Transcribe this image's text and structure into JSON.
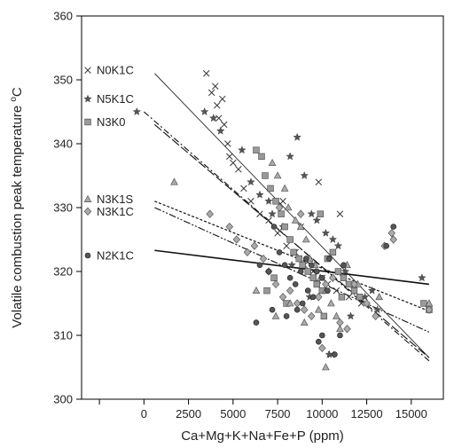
{
  "chart_data": {
    "type": "scatter",
    "title": "",
    "xlabel": "Ca+Mg+K+Na+Fe+P (ppm)",
    "ylabel_main": "Volatile combustion peak temperature ",
    "ylabel_unit": "C",
    "ylabel_sup": "o",
    "xlim": [
      -3500,
      16800
    ],
    "ylim": [
      300,
      360
    ],
    "xticks": [
      0,
      2500,
      5000,
      7500,
      10000,
      12500,
      15000
    ],
    "xtick_labels": [
      "0",
      "2500",
      "5000",
      "7500",
      "10000",
      "12500",
      "15000"
    ],
    "yticks": [
      300,
      310,
      320,
      330,
      340,
      350,
      360
    ],
    "ytick_labels": [
      "300",
      "310",
      "320",
      "330",
      "340",
      "350",
      "360"
    ],
    "legend_placement": "left, inside plot",
    "series": [
      {
        "name": "N0K1C",
        "marker": "x",
        "color": "#333333",
        "line_style": "solid-thin",
        "fit": [
          [
            600,
            351
          ],
          [
            16000,
            306.5
          ]
        ],
        "points": [
          [
            3500,
            351
          ],
          [
            3800,
            348
          ],
          [
            4000,
            349
          ],
          [
            4100,
            346
          ],
          [
            4200,
            344
          ],
          [
            4400,
            347
          ],
          [
            4500,
            343
          ],
          [
            4700,
            340
          ],
          [
            4800,
            338
          ],
          [
            5000,
            337
          ],
          [
            5300,
            336
          ],
          [
            5600,
            333
          ],
          [
            6000,
            331
          ],
          [
            6500,
            329
          ],
          [
            7000,
            328
          ],
          [
            7500,
            326
          ],
          [
            8000,
            324
          ],
          [
            8500,
            323
          ],
          [
            9000,
            321
          ],
          [
            9500,
            320
          ],
          [
            10000,
            319
          ],
          [
            10300,
            318
          ],
          [
            10800,
            317
          ],
          [
            11500,
            316
          ],
          [
            12200,
            315
          ],
          [
            9800,
            334
          ],
          [
            11000,
            329
          ],
          [
            10500,
            307
          ],
          [
            7800,
            331
          ],
          [
            8800,
            327
          ]
        ]
      },
      {
        "name": "N5K1C",
        "marker": "star",
        "color": "#555555",
        "line_style": "dash-dot",
        "fit": [
          [
            0,
            345
          ],
          [
            16000,
            306
          ]
        ],
        "points": [
          [
            -400,
            345
          ],
          [
            3400,
            345
          ],
          [
            3900,
            344
          ],
          [
            4300,
            342
          ],
          [
            5500,
            339
          ],
          [
            6000,
            334
          ],
          [
            6500,
            332
          ],
          [
            7000,
            331
          ],
          [
            7200,
            329
          ],
          [
            7800,
            327
          ],
          [
            8600,
            341
          ],
          [
            8200,
            338
          ],
          [
            9000,
            335
          ],
          [
            9400,
            329
          ],
          [
            9700,
            328
          ],
          [
            10200,
            326
          ],
          [
            10600,
            325
          ],
          [
            10900,
            324
          ],
          [
            11300,
            320
          ],
          [
            11800,
            318
          ],
          [
            12400,
            316
          ],
          [
            13100,
            314
          ],
          [
            15600,
            319
          ],
          [
            8300,
            321
          ],
          [
            9300,
            316
          ],
          [
            10400,
            307
          ],
          [
            11600,
            313
          ],
          [
            12800,
            317
          ]
        ]
      },
      {
        "name": "N3K0",
        "marker": "square",
        "color": "#999999",
        "line_style": "long-dash",
        "fit": [
          [
            600,
            343
          ],
          [
            16000,
            306.5
          ]
        ],
        "points": [
          [
            6300,
            339
          ],
          [
            6600,
            338
          ],
          [
            6800,
            335
          ],
          [
            7100,
            333
          ],
          [
            7400,
            331
          ],
          [
            7700,
            329
          ],
          [
            7900,
            327
          ],
          [
            8200,
            325
          ],
          [
            8400,
            323
          ],
          [
            8700,
            322
          ],
          [
            8900,
            321
          ],
          [
            9200,
            320
          ],
          [
            9500,
            319
          ],
          [
            9700,
            318
          ],
          [
            10000,
            317
          ],
          [
            10300,
            322
          ],
          [
            10600,
            323
          ],
          [
            10900,
            320
          ],
          [
            11200,
            319
          ],
          [
            11500,
            318
          ],
          [
            11800,
            317
          ],
          [
            12100,
            316
          ],
          [
            6900,
            317
          ],
          [
            7300,
            319
          ],
          [
            8000,
            315
          ],
          [
            9900,
            329
          ],
          [
            10100,
            313
          ],
          [
            11100,
            316
          ],
          [
            15700,
            315
          ],
          [
            16000,
            314
          ]
        ]
      },
      {
        "name": "N3K1S",
        "marker": "triangle",
        "color": "#aaaaaa",
        "line_style": "dotted",
        "fit": [
          [
            600,
            331
          ],
          [
            16000,
            313.8
          ]
        ],
        "points": [
          [
            1700,
            334
          ],
          [
            7200,
            337
          ],
          [
            7500,
            335
          ],
          [
            7900,
            333
          ],
          [
            8100,
            330
          ],
          [
            8500,
            328
          ],
          [
            8800,
            327
          ],
          [
            9100,
            325
          ],
          [
            9300,
            322
          ],
          [
            9600,
            321
          ],
          [
            9900,
            319
          ],
          [
            10200,
            317
          ],
          [
            10500,
            315
          ],
          [
            10800,
            313
          ],
          [
            11000,
            311
          ],
          [
            11400,
            321
          ],
          [
            12000,
            318
          ],
          [
            13200,
            316
          ],
          [
            10200,
            305
          ],
          [
            7400,
            313
          ],
          [
            8200,
            315
          ],
          [
            6300,
            317
          ],
          [
            9000,
            312
          ],
          [
            9800,
            314
          ],
          [
            16000,
            315
          ]
        ]
      },
      {
        "name": "N3K1C",
        "marker": "diamond",
        "color": "#aaaaaa",
        "line_style": "dash-dot-dot",
        "fit": [
          [
            600,
            330
          ],
          [
            16000,
            310.5
          ]
        ],
        "points": [
          [
            3700,
            329
          ],
          [
            4800,
            327
          ],
          [
            5200,
            325
          ],
          [
            5800,
            323
          ],
          [
            6200,
            324
          ],
          [
            6700,
            322
          ],
          [
            7000,
            320
          ],
          [
            7400,
            318
          ],
          [
            7800,
            316
          ],
          [
            8200,
            317
          ],
          [
            8600,
            315
          ],
          [
            9000,
            314
          ],
          [
            9400,
            313
          ],
          [
            9800,
            316
          ],
          [
            10200,
            318
          ],
          [
            10600,
            319
          ],
          [
            11000,
            312
          ],
          [
            11400,
            311
          ],
          [
            11800,
            318
          ],
          [
            12500,
            315
          ],
          [
            13000,
            313
          ],
          [
            13500,
            324
          ],
          [
            13900,
            326
          ],
          [
            14000,
            325
          ],
          [
            16000,
            314
          ],
          [
            7600,
            330
          ],
          [
            8800,
            329
          ],
          [
            10000,
            308
          ]
        ]
      },
      {
        "name": "N2K1C",
        "marker": "circle",
        "color": "#555555",
        "line_style": "solid-thick",
        "fit": [
          [
            600,
            323.3
          ],
          [
            16000,
            318
          ]
        ],
        "points": [
          [
            6300,
            312
          ],
          [
            6500,
            321
          ],
          [
            7000,
            320
          ],
          [
            7300,
            327
          ],
          [
            7600,
            323
          ],
          [
            7900,
            321
          ],
          [
            8200,
            319
          ],
          [
            8500,
            318
          ],
          [
            8800,
            320
          ],
          [
            9100,
            322
          ],
          [
            9400,
            321
          ],
          [
            9700,
            320
          ],
          [
            10000,
            319
          ],
          [
            10300,
            317
          ],
          [
            10700,
            307
          ],
          [
            11000,
            310
          ],
          [
            8000,
            313
          ],
          [
            8600,
            314
          ],
          [
            9200,
            317
          ],
          [
            9500,
            316
          ],
          [
            9800,
            309
          ],
          [
            10000,
            310
          ],
          [
            10400,
            322
          ],
          [
            13600,
            324
          ],
          [
            14000,
            327
          ],
          [
            8900,
            315
          ],
          [
            7200,
            314
          ],
          [
            11200,
            321
          ]
        ]
      }
    ]
  }
}
